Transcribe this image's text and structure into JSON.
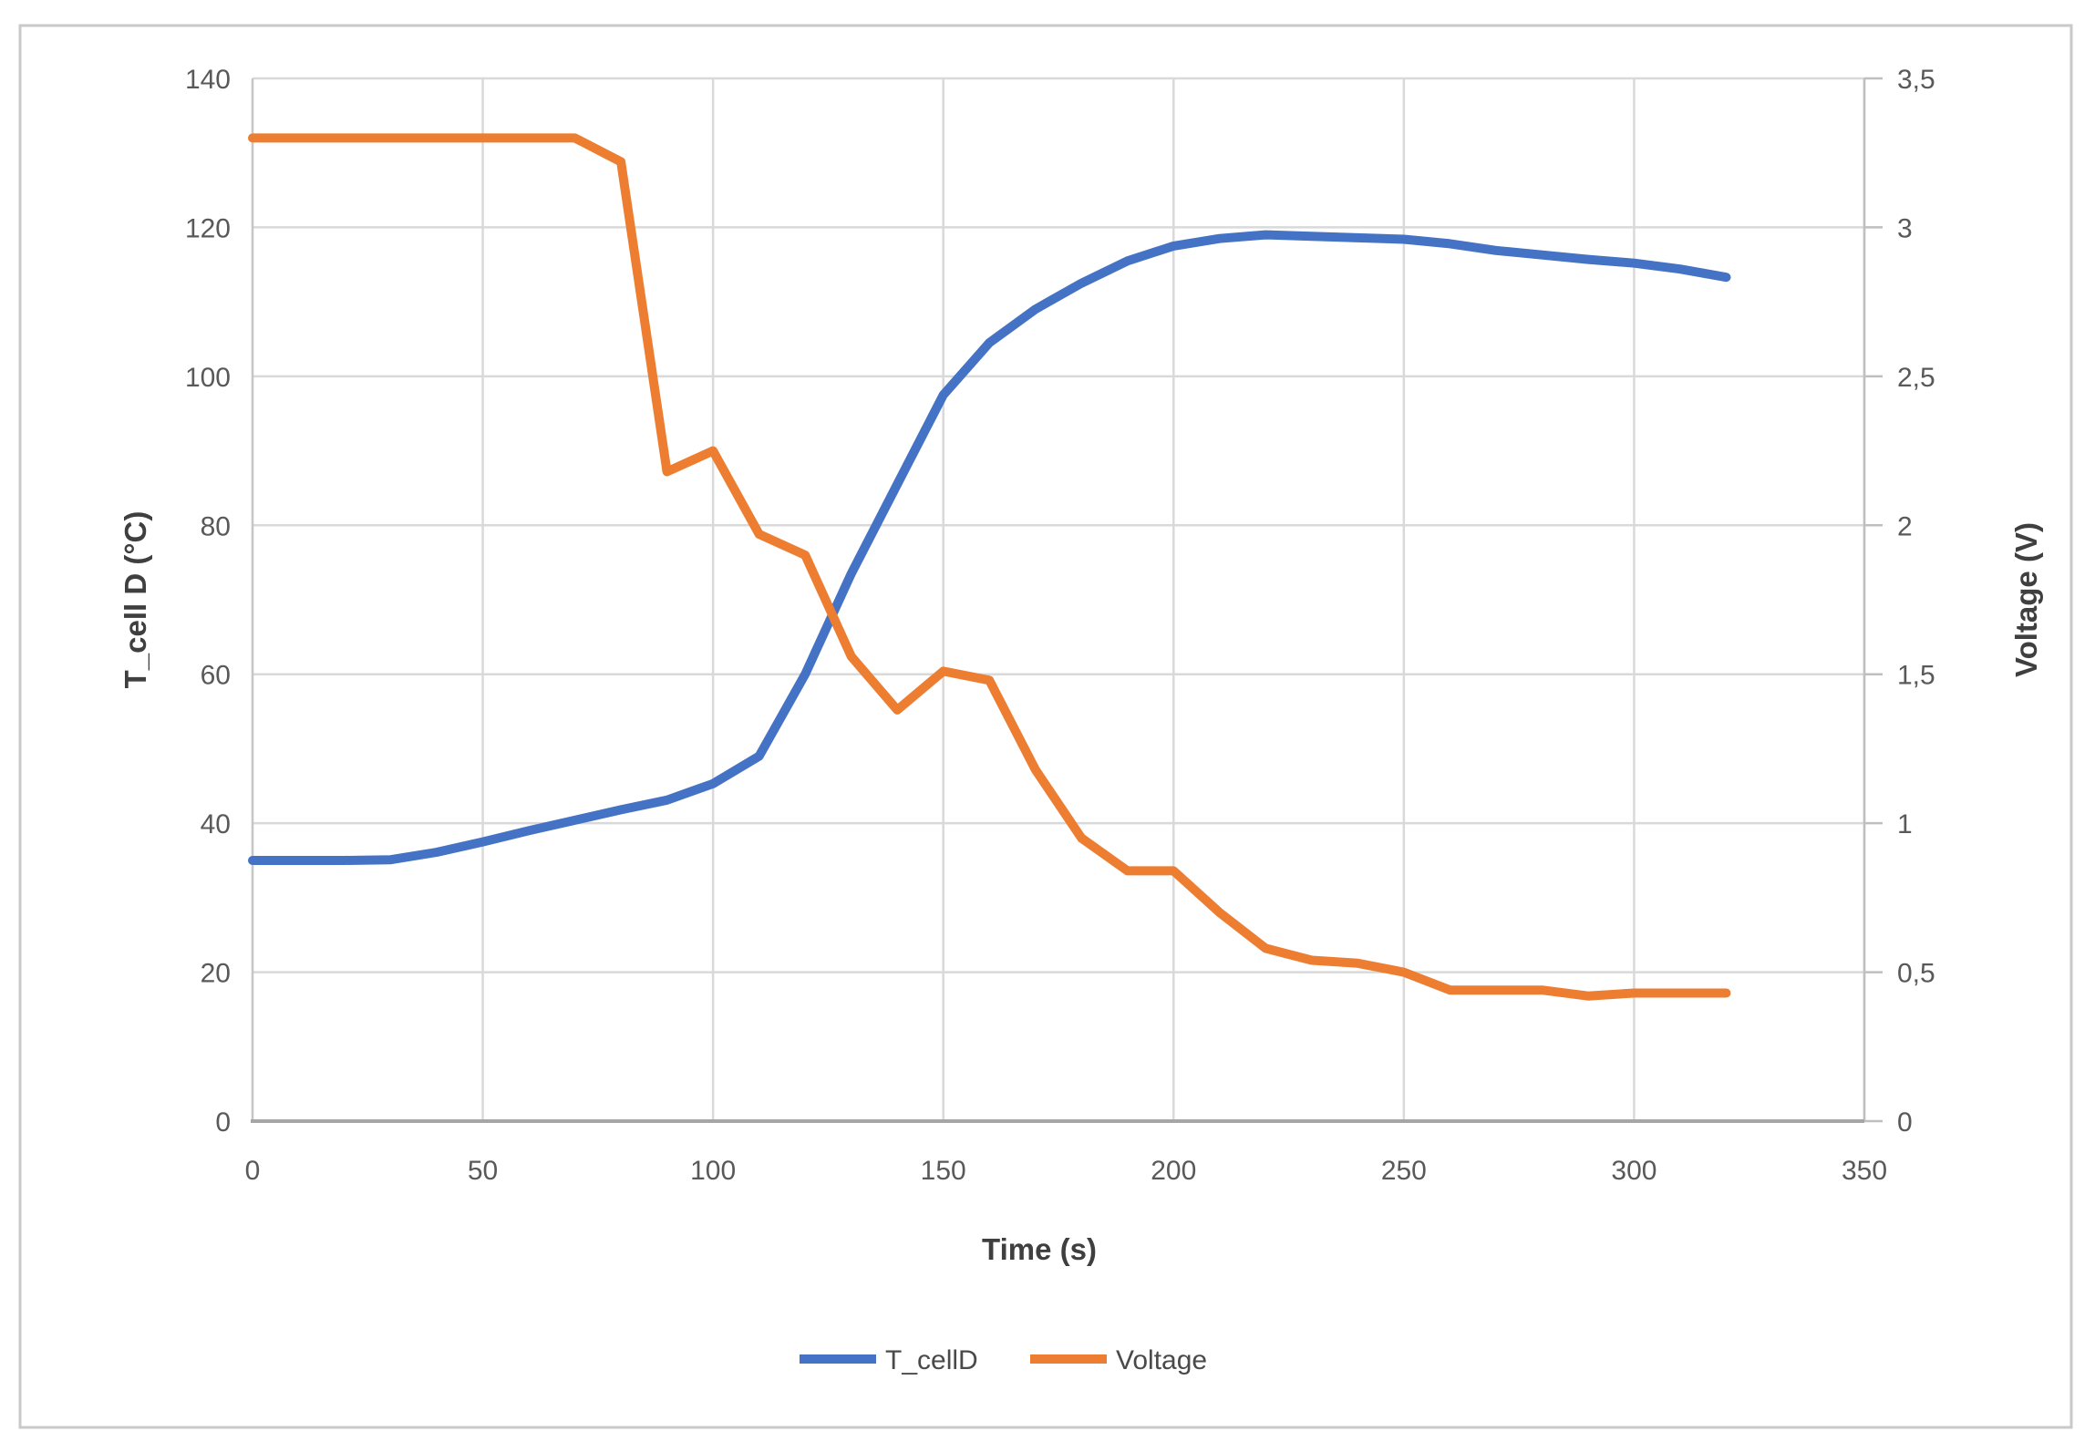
{
  "chart_data": {
    "type": "line",
    "title": "",
    "xlabel": "Time (s)",
    "ylabel_left": "T_cell D (°C)",
    "ylabel_right": "Voltage (V)",
    "xlim": [
      0,
      350
    ],
    "ylim_left": [
      0,
      140
    ],
    "ylim_right": [
      0,
      3.5
    ],
    "x_ticks": [
      0,
      50,
      100,
      150,
      200,
      250,
      300,
      350
    ],
    "left_ticks": [
      "0",
      "20",
      "40",
      "60",
      "80",
      "100",
      "120",
      "140"
    ],
    "right_ticks": [
      "0",
      "0,5",
      "1",
      "1,5",
      "2",
      "2,5",
      "3",
      "3,5"
    ],
    "grid": true,
    "legend_position": "bottom",
    "x": [
      0,
      10,
      20,
      30,
      40,
      50,
      60,
      70,
      80,
      90,
      100,
      110,
      120,
      130,
      140,
      150,
      160,
      170,
      180,
      190,
      200,
      210,
      220,
      230,
      240,
      250,
      260,
      270,
      280,
      290,
      300,
      310,
      320
    ],
    "series": [
      {
        "name": "T_cellD",
        "axis": "left",
        "color": "#4472C4",
        "values": [
          35,
          35,
          35,
          35.1,
          36.1,
          37.5,
          39,
          40.4,
          41.8,
          43.1,
          45.3,
          49,
          60,
          73.5,
          85.5,
          97.5,
          104.5,
          109,
          112.5,
          115.5,
          117.5,
          118.5,
          119,
          118.8,
          118.6,
          118.4,
          117.8,
          116.9,
          116.3,
          115.7,
          115.2,
          114.4,
          113.3
        ]
      },
      {
        "name": "Voltage",
        "axis": "right",
        "color": "#ED7D31",
        "values": [
          3.3,
          3.3,
          3.3,
          3.3,
          3.3,
          3.3,
          3.3,
          3.3,
          3.22,
          2.18,
          2.25,
          1.97,
          1.9,
          1.56,
          1.38,
          1.51,
          1.48,
          1.18,
          0.95,
          0.84,
          0.84,
          0.7,
          0.58,
          0.54,
          0.53,
          0.5,
          0.44,
          0.44,
          0.44,
          0.42,
          0.43,
          0.43,
          0.43
        ]
      }
    ]
  },
  "legend": {
    "items": [
      {
        "label": "T_cellD",
        "color": "#4472C4"
      },
      {
        "label": "Voltage",
        "color": "#ED7D31"
      }
    ]
  },
  "style_colors": {
    "gridline": "#D9D9D9",
    "left_axis": "#C6C6C6",
    "bottom_axis": "#A6A6A6",
    "right_axis": "#BFBFBF",
    "frame": "#C9C9C9",
    "tick_text": "#595959"
  }
}
